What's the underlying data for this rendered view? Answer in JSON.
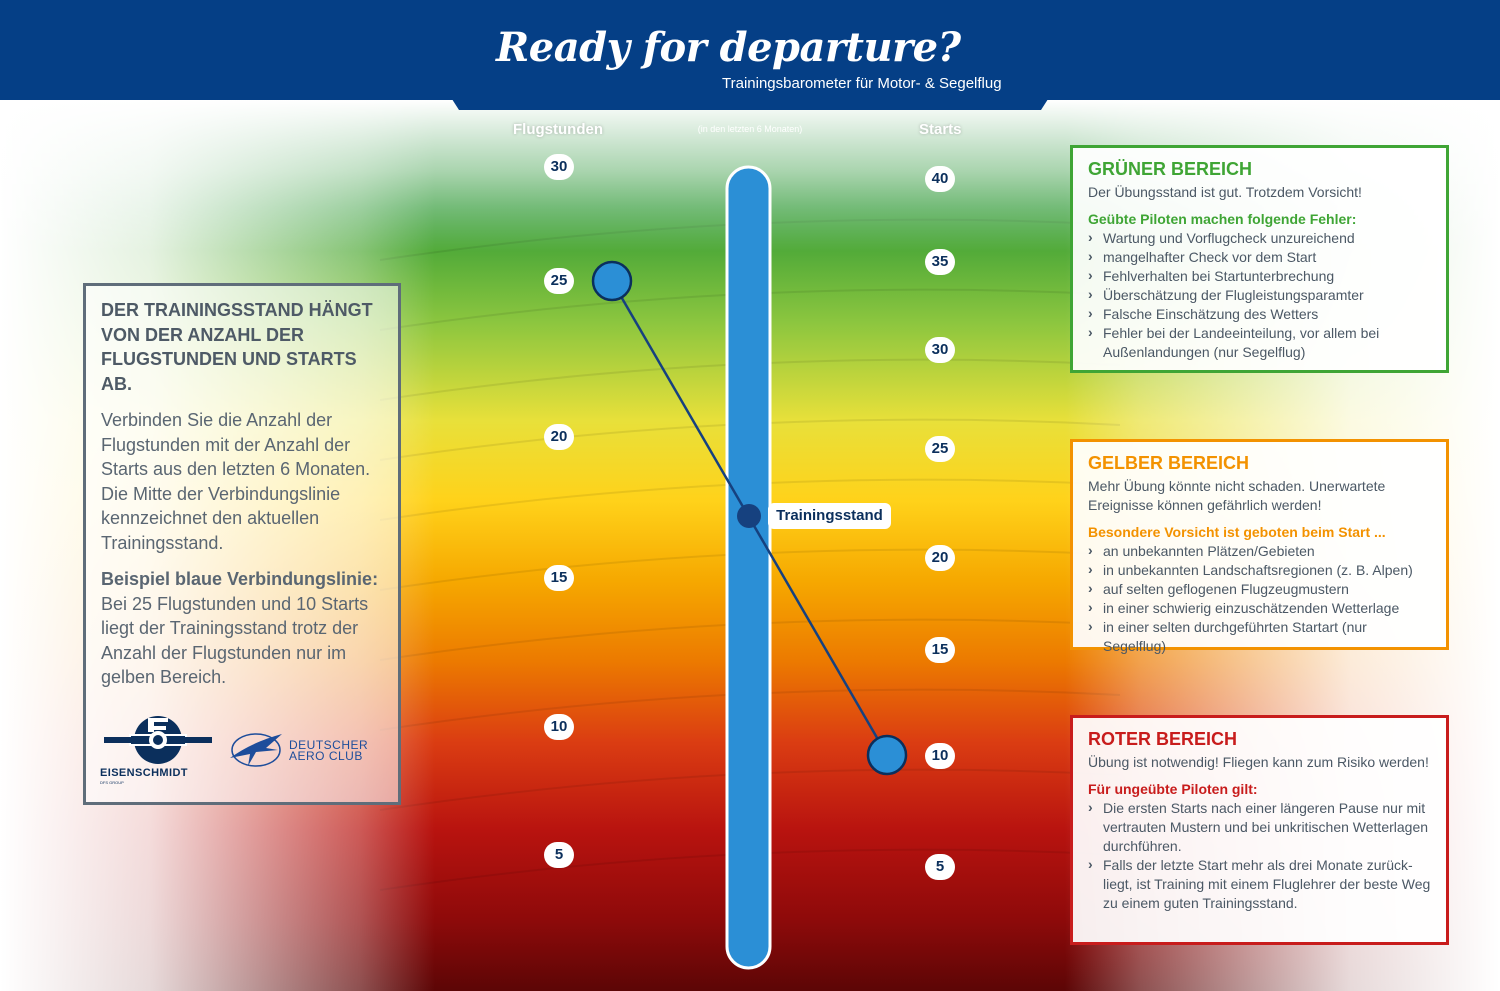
{
  "header": {
    "title": "Ready for departure?",
    "subtitle": "Trainingsbarometer für Motor- & Segelflug",
    "color": "#053f86"
  },
  "barometer": {
    "left_label": "Flugstunden",
    "center_label": "(in den letzten 6 Monaten)",
    "right_label": "Starts",
    "left_ticks": [
      30,
      25,
      20,
      15,
      10,
      5
    ],
    "right_ticks": [
      40,
      35,
      30,
      25,
      20,
      15,
      10,
      5
    ],
    "example": {
      "flugstunden": 25,
      "starts": 10
    },
    "result_label": "Trainingsstand",
    "bar_color": "#2b8fd6",
    "band_colors": [
      "#1f8a36",
      "#3fa535",
      "#8cc63f",
      "#ffde17",
      "#f7b500",
      "#f08a00",
      "#e35a0d",
      "#d1231a",
      "#b3120f",
      "#8e0a0a",
      "#6b0707"
    ]
  },
  "left_panel": {
    "heading": "DER TRAININGSSTAND HÄNGT VON DER ANZAHL DER FLUGSTUNDEN UND STARTS AB.",
    "text": "Verbinden Sie die Anzahl der Flugstunden mit der Anzahl der Starts aus den letzten 6 Monaten. Die Mitte der Verbindungslinie kennzeichnet den aktuellen Trainingsstand.",
    "example_heading": "Beispiel blaue Verbindungslinie:",
    "example_text": "Bei 25 Flugstunden und 10 Starts liegt der Trainingsstand trotz der Anzahl der Flugstunden nur im gelben Bereich.",
    "logos": {
      "eisenschmidt": "EISENSCHMIDT",
      "eisenschmidt_sub": "DFS GROUP",
      "daec_line1": "DEUTSCHER",
      "daec_line2": "AERO CLUB"
    }
  },
  "zones": {
    "green": {
      "title": "GRÜNER BEREICH",
      "description": "Der Übungsstand ist gut. Trotzdem Vorsicht!",
      "subtitle": "Geübte Piloten machen folgende Fehler:",
      "items": [
        "Wartung und Vorflugcheck unzureichend",
        "mangelhafter Check vor dem Start",
        "Fehlverhalten bei Startunterbrechung",
        "Überschätzung der Flugleistungsparamter",
        "Falsche Einschätzung des Wetters",
        "Fehler bei der Landeeinteilung, vor allem bei Außenlandungen (nur Segelflug)"
      ]
    },
    "yellow": {
      "title": "GELBER BEREICH",
      "description": "Mehr Übung könnte nicht schaden. Unerwartete Ereignisse können gefährlich werden!",
      "subtitle": "Besondere Vorsicht ist geboten beim Start ...",
      "items": [
        "an unbekannten Plätzen/Gebieten",
        "in unbekannten Landschaftsregionen (z. B. Alpen)",
        "auf selten geflogenen Flugzeugmustern",
        "in einer schwierig einzuschätzenden Wetterlage",
        "in einer selten durchgeführten Startart (nur Segelflug)"
      ]
    },
    "red": {
      "title": "ROTER BEREICH",
      "description": "Übung ist notwendig! Fliegen kann zum Risiko werden!",
      "subtitle": "Für ungeübte Piloten gilt:",
      "items": [
        "Die ersten Starts nach einer längeren Pause nur mit vertrauten Mustern und bei unkritischen Wetterlagen durchführen.",
        "Falls der letzte Start mehr als drei Monate zurück-liegt, ist Training mit einem Fluglehrer der beste Weg zu einem guten Trainingsstand."
      ]
    }
  }
}
